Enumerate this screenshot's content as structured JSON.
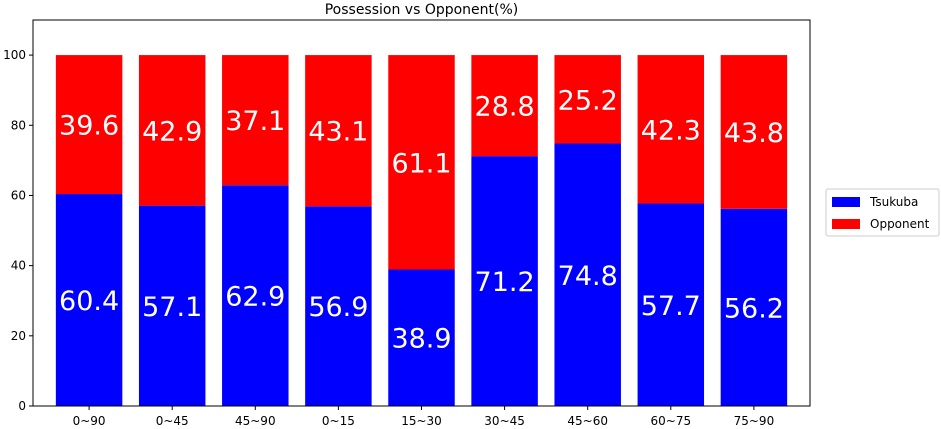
{
  "chart_data": {
    "type": "bar",
    "stacked": true,
    "title": "Possession vs Opponent(%)",
    "xlabel": "",
    "ylabel": "",
    "categories": [
      "0~90",
      "0~45",
      "45~90",
      "0~15",
      "15~30",
      "30~45",
      "45~60",
      "60~75",
      "75~90"
    ],
    "series": [
      {
        "name": "Tsukuba",
        "color": "#0000ff",
        "values": [
          60.4,
          57.1,
          62.9,
          56.9,
          38.9,
          71.2,
          74.8,
          57.7,
          56.2
        ]
      },
      {
        "name": "Opponent",
        "color": "#ff0000",
        "values": [
          39.6,
          42.9,
          37.1,
          43.1,
          61.1,
          28.8,
          25.2,
          42.3,
          43.8
        ]
      }
    ],
    "ylim": [
      0,
      110
    ],
    "yticks": [
      0,
      20,
      40,
      60,
      80,
      100
    ],
    "data_labels": true,
    "grid": false,
    "legend_position": "right"
  }
}
